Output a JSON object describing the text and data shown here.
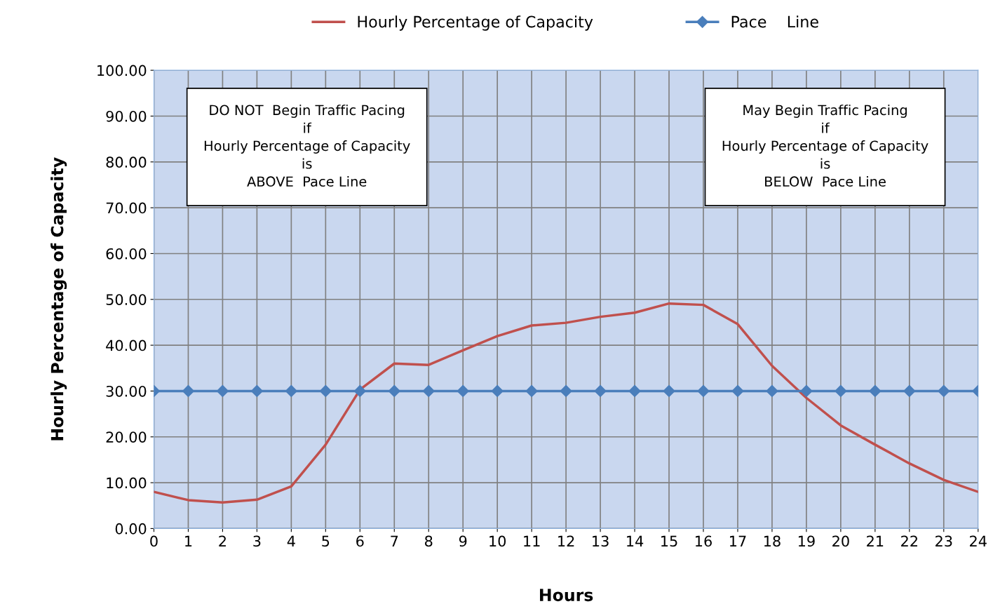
{
  "chart_data": {
    "type": "line",
    "xlabel": "Hours",
    "ylabel": "Hourly Percentage of Capacity",
    "x": [
      0,
      1,
      2,
      3,
      4,
      5,
      6,
      7,
      8,
      9,
      10,
      11,
      12,
      13,
      14,
      15,
      16,
      17,
      18,
      19,
      20,
      21,
      22,
      23,
      24
    ],
    "series": [
      {
        "name": "Hourly Percentage of Capacity",
        "color": "#c0504d",
        "marker": "none",
        "values": [
          8.0,
          6.2,
          5.7,
          6.3,
          9.2,
          18.3,
          30.3,
          36.0,
          35.7,
          38.9,
          42.0,
          44.3,
          44.9,
          46.2,
          47.1,
          49.1,
          48.8,
          44.6,
          35.5,
          28.5,
          22.5,
          18.3,
          14.2,
          10.6,
          8.0
        ]
      },
      {
        "name": "Pace    Line",
        "color": "#4a7ebb",
        "marker": "diamond",
        "values": [
          30,
          30,
          30,
          30,
          30,
          30,
          30,
          30,
          30,
          30,
          30,
          30,
          30,
          30,
          30,
          30,
          30,
          30,
          30,
          30,
          30,
          30,
          30,
          30,
          30
        ]
      }
    ],
    "xlim": [
      0,
      24
    ],
    "xticks": [
      0,
      1,
      2,
      3,
      4,
      5,
      6,
      7,
      8,
      9,
      10,
      11,
      12,
      13,
      14,
      15,
      16,
      17,
      18,
      19,
      20,
      21,
      22,
      23,
      24
    ],
    "ylim": [
      0,
      100
    ],
    "yticks": [
      {
        "value": 0,
        "label": "0.00"
      },
      {
        "value": 10,
        "label": "10.00"
      },
      {
        "value": 20,
        "label": "20.00"
      },
      {
        "value": 30,
        "label": "30.00"
      },
      {
        "value": 40,
        "label": "40.00"
      },
      {
        "value": 50,
        "label": "50.00"
      },
      {
        "value": 60,
        "label": "60.00"
      },
      {
        "value": 70,
        "label": "70.00"
      },
      {
        "value": 80,
        "label": "80.00"
      },
      {
        "value": 90,
        "label": "90.00"
      },
      {
        "value": 100,
        "label": "100.00"
      }
    ],
    "grid": true,
    "legend": "top",
    "line_style": "solid",
    "annotations": [
      "DO NOT  Begin Traffic Pacing\nif\nHourly Percentage of Capacity\nis\nABOVE  Pace Line",
      "May Begin Traffic Pacing\nif\nHourly Percentage of Capacity\nis\nBELOW  Pace Line"
    ]
  }
}
